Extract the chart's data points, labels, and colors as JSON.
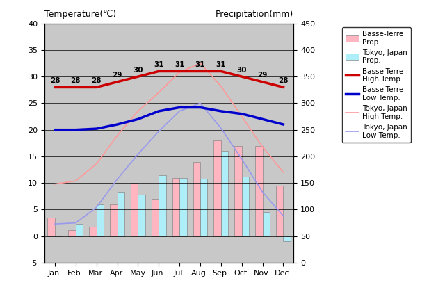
{
  "months": [
    "Jan.",
    "Feb.",
    "Mar.",
    "Apr.",
    "May",
    "Jun.",
    "Jul.",
    "Aug.",
    "Sep.",
    "Oct.",
    "Nov.",
    "Dec."
  ],
  "basse_terre_high": [
    28,
    28,
    28,
    29,
    30,
    31,
    31,
    31,
    31,
    30,
    29,
    28
  ],
  "basse_terre_low": [
    20.0,
    20.0,
    20.2,
    21.0,
    22.0,
    23.5,
    24.2,
    24.2,
    23.5,
    23.0,
    22.0,
    21.0
  ],
  "tokyo_high": [
    9.8,
    10.4,
    13.6,
    18.9,
    23.5,
    27.0,
    30.8,
    32.5,
    28.2,
    22.5,
    16.8,
    12.0
  ],
  "tokyo_low": [
    2.3,
    2.5,
    5.4,
    10.7,
    15.4,
    19.7,
    23.5,
    25.0,
    20.3,
    14.5,
    8.3,
    3.8
  ],
  "basse_terre_precip_left": [
    3.5,
    1.2,
    1.8,
    6.0,
    10.0,
    7.0,
    11.0,
    14.0,
    18.0,
    17.0,
    17.0,
    9.5
  ],
  "tokyo_precip_left": [
    0.0,
    2.3,
    6.0,
    8.3,
    7.8,
    11.5,
    11.0,
    10.8,
    16.0,
    11.2,
    4.5,
    -1.0
  ],
  "basse_terre_high_labels": [
    "28",
    "28",
    "28",
    "29",
    "30",
    "31",
    "31",
    "31",
    "31",
    "30",
    "29",
    "28"
  ],
  "temp_ylim": [
    -5,
    40
  ],
  "temp_yticks": [
    -5,
    0,
    5,
    10,
    15,
    20,
    25,
    30,
    35,
    40
  ],
  "precip_ylim": [
    0,
    450
  ],
  "precip_yticks": [
    0,
    50,
    100,
    150,
    200,
    250,
    300,
    350,
    400,
    450
  ],
  "basse_terre_bar_color": "#FFB6C1",
  "tokyo_bar_color": "#AEEEF8",
  "basse_terre_high_color": "#CC0000",
  "basse_terre_low_color": "#0000CC",
  "tokyo_high_color": "#FF9999",
  "tokyo_low_color": "#9999EE",
  "bg_color": "#C8C8C8",
  "title_left": "Temperature(℃)",
  "title_right": "Precipitation(mm)"
}
